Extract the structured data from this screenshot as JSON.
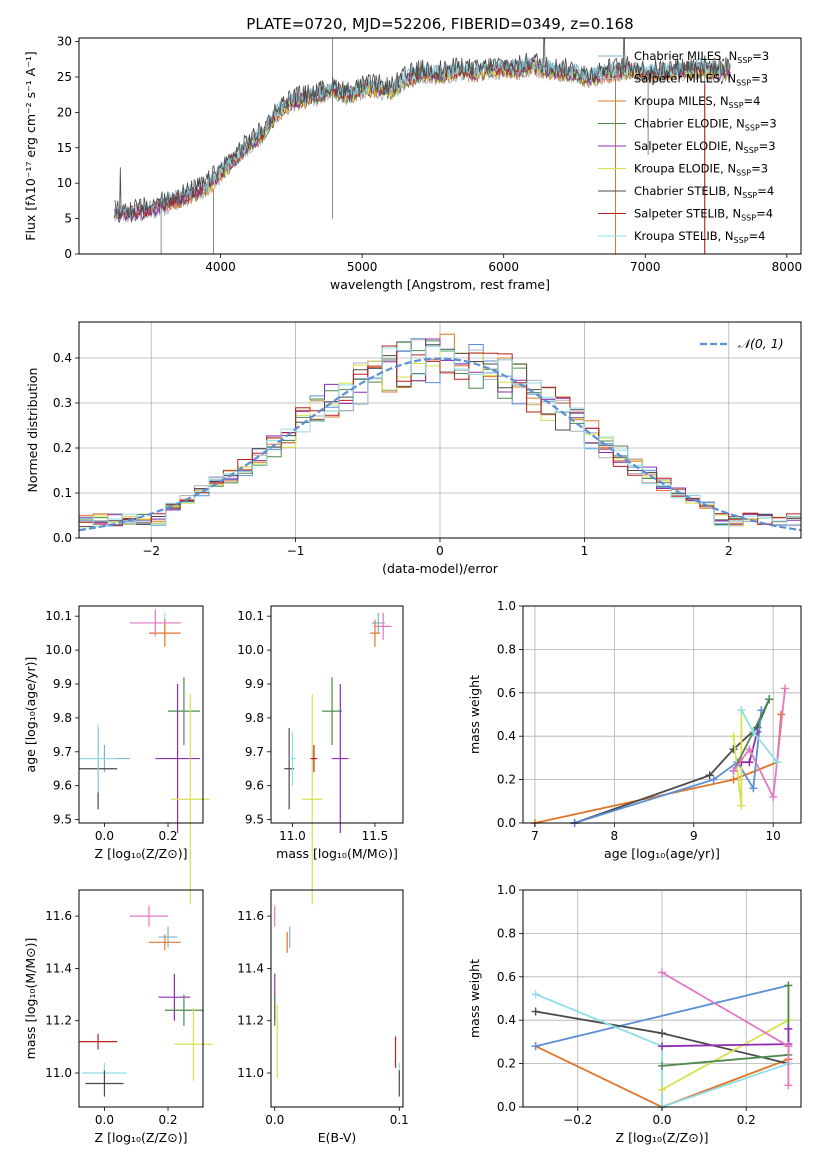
{
  "figure_title": "PLATE=0720, MJD=52206, FIBERID=0349, z=0.168",
  "colors": {
    "series": [
      "#7fb3c8",
      "#aeb3b8",
      "#e0762a",
      "#4f8b4f",
      "#8e2fb0",
      "#d8e04f",
      "#4a4a4a",
      "#b81f1f",
      "#8fdde6"
    ],
    "pink": "#e377c2",
    "blue": "#5b8fd6",
    "grid": "#b0b0b0",
    "gaussian": "#5b8fd6"
  },
  "chart_data": [
    {
      "id": "spectrum",
      "type": "line",
      "title": "PLATE=0720, MJD=52206, FIBERID=0349, z=0.168",
      "xlabel": "wavelength [Angstrom, rest frame]",
      "ylabel": "Flux [fλ10⁻¹⁷ erg cm⁻² s⁻¹ A⁻¹]",
      "xlim": [
        3000,
        8100
      ],
      "ylim": [
        0,
        30.5
      ],
      "xticks": [
        4000,
        5000,
        6000,
        7000,
        8000
      ],
      "yticks": [
        0,
        5,
        10,
        15,
        20,
        25,
        30
      ],
      "grid": false,
      "legend_position": "top-right",
      "legend": [
        {
          "label": "Chabrier MILES, N",
          "sub": "SSP",
          "tail": "=3"
        },
        {
          "label": "Salpeter MILES, N",
          "sub": "SSP",
          "tail": "=3"
        },
        {
          "label": "Kroupa MILES, N",
          "sub": "SSP",
          "tail": "=4"
        },
        {
          "label": "Chabrier ELODIE, N",
          "sub": "SSP",
          "tail": "=3"
        },
        {
          "label": "Salpeter ELODIE, N",
          "sub": "SSP",
          "tail": "=3"
        },
        {
          "label": "Kroupa ELODIE, N",
          "sub": "SSP",
          "tail": "=3"
        },
        {
          "label": "Chabrier STELIB, N",
          "sub": "SSP",
          "tail": "=4"
        },
        {
          "label": "Salpeter STELIB, N",
          "sub": "SSP",
          "tail": "=4"
        },
        {
          "label": "Kroupa STELIB, N",
          "sub": "SSP",
          "tail": "=4"
        }
      ],
      "continuum": [
        [
          3250,
          5.6
        ],
        [
          3400,
          5.8
        ],
        [
          3550,
          6.5
        ],
        [
          3700,
          7.8
        ],
        [
          3800,
          8.5
        ],
        [
          3900,
          9.5
        ],
        [
          4000,
          11.5
        ],
        [
          4100,
          13.5
        ],
        [
          4200,
          15.5
        ],
        [
          4300,
          17
        ],
        [
          4400,
          20
        ],
        [
          4500,
          21.5
        ],
        [
          4600,
          22
        ],
        [
          4700,
          22.5
        ],
        [
          4800,
          23.2
        ],
        [
          4900,
          22.5
        ],
        [
          5000,
          23.2
        ],
        [
          5100,
          23.5
        ],
        [
          5200,
          23
        ],
        [
          5300,
          24.5
        ],
        [
          5400,
          25.5
        ],
        [
          5500,
          25.5
        ],
        [
          5600,
          25.5
        ],
        [
          5700,
          26
        ],
        [
          5800,
          25.5
        ],
        [
          5900,
          26
        ],
        [
          6000,
          26.2
        ],
        [
          6100,
          26
        ],
        [
          6200,
          26.8
        ],
        [
          6300,
          26
        ],
        [
          6400,
          25.8
        ],
        [
          6500,
          25.5
        ],
        [
          6600,
          24.8
        ],
        [
          6700,
          25.5
        ],
        [
          6800,
          25.8
        ],
        [
          6900,
          26
        ],
        [
          7000,
          25.5
        ],
        [
          7100,
          25.5
        ],
        [
          7200,
          25.8
        ],
        [
          7300,
          26
        ],
        [
          7400,
          26.2
        ],
        [
          7500,
          25.8
        ],
        [
          7600,
          26
        ]
      ]
    },
    {
      "id": "residuals",
      "type": "histogram",
      "xlabel": "(data-model)/error",
      "ylabel": "Normed distribution",
      "xlim": [
        -2.5,
        2.5
      ],
      "ylim": [
        0,
        0.48
      ],
      "xticks": [
        -2,
        -1,
        0,
        1,
        2
      ],
      "yticks": [
        0.0,
        0.1,
        0.2,
        0.3,
        0.4
      ],
      "grid": true,
      "legend_position": "top-right",
      "gaussian_label": "𝒩(0, 1)",
      "bin_width": 0.1
    },
    {
      "id": "age-vs-Z",
      "type": "scatter",
      "xlabel": "Z [log₁₀(Z/Z⊙)]",
      "ylabel": "age  [log₁₀(age/yr)]",
      "xlim": [
        -0.08,
        0.31
      ],
      "ylim": [
        9.49,
        10.13
      ],
      "xticks": [
        0.0,
        0.2
      ],
      "yticks": [
        9.5,
        9.6,
        9.7,
        9.8,
        9.9,
        10.0,
        10.1
      ],
      "points": [
        {
          "x": 0.0,
          "y": 9.68,
          "xerr": 0.08,
          "yerr": 0.04,
          "series": 0
        },
        {
          "x": 0.19,
          "y": 10.08,
          "xerr": 0.05,
          "yerr": 0.03,
          "series": 8
        },
        {
          "x": 0.19,
          "y": 10.05,
          "xerr": 0.05,
          "yerr": 0.04,
          "series": 2
        },
        {
          "x": 0.16,
          "y": 10.08,
          "xerr": 0.08,
          "yerr": 0.04,
          "series": "pink"
        },
        {
          "x": 0.25,
          "y": 9.82,
          "xerr": 0.05,
          "yerr": 0.1,
          "series": 3
        },
        {
          "x": 0.23,
          "y": 9.68,
          "xerr": 0.07,
          "yerr": 0.22,
          "series": 4
        },
        {
          "x": 0.27,
          "y": 9.56,
          "xerr": 0.06,
          "yerr": 0.31,
          "series": 5
        },
        {
          "x": -0.02,
          "y": 9.65,
          "xerr": 0.06,
          "yerr": 0.12,
          "series": 6
        },
        {
          "x": -0.02,
          "y": 9.68,
          "xerr": 0.06,
          "yerr": 0.1,
          "series": 8
        }
      ]
    },
    {
      "id": "age-vs-mass",
      "type": "scatter",
      "xlabel": "mass [log₁₀(M/M⊙)]",
      "ylabel": "",
      "xlim": [
        10.87,
        11.67
      ],
      "ylim": [
        9.49,
        10.13
      ],
      "xticks": [
        11.0,
        11.5
      ],
      "yticks": [
        9.5,
        9.6,
        9.7,
        9.8,
        9.9,
        10.0,
        10.1
      ],
      "points": [
        {
          "x": 11.52,
          "y": 10.08,
          "xerr": 0.04,
          "yerr": 0.03,
          "series": 0
        },
        {
          "x": 11.55,
          "y": 10.07,
          "xerr": 0.05,
          "yerr": 0.04,
          "series": "pink"
        },
        {
          "x": 11.5,
          "y": 10.05,
          "xerr": 0.03,
          "yerr": 0.04,
          "series": 2
        },
        {
          "x": 11.24,
          "y": 9.82,
          "xerr": 0.06,
          "yerr": 0.1,
          "series": 3
        },
        {
          "x": 11.29,
          "y": 9.68,
          "xerr": 0.05,
          "yerr": 0.22,
          "series": 4
        },
        {
          "x": 11.12,
          "y": 9.56,
          "xerr": 0.06,
          "yerr": 0.31,
          "series": 5
        },
        {
          "x": 10.98,
          "y": 9.65,
          "xerr": 0.03,
          "yerr": 0.12,
          "series": 6
        },
        {
          "x": 11.13,
          "y": 9.68,
          "xerr": 0.02,
          "yerr": 0.04,
          "series": 7
        },
        {
          "x": 11.0,
          "y": 9.68,
          "xerr": 0.02,
          "yerr": 0.08,
          "series": 8
        }
      ]
    },
    {
      "id": "sfh-age",
      "type": "line",
      "xlabel": "age  [log₁₀(age/yr)]",
      "ylabel": "mass weight",
      "xlim": [
        6.85,
        10.35
      ],
      "ylim": [
        0,
        1
      ],
      "xticks": [
        7,
        8,
        9,
        10
      ],
      "yticks": [
        0.0,
        0.2,
        0.4,
        0.6,
        0.8,
        1.0
      ],
      "grid": true,
      "series": [
        {
          "color": 2,
          "x": [
            7.0,
            9.5,
            10.05,
            10.1
          ],
          "y": [
            0.0,
            0.2,
            0.28,
            0.5
          ]
        },
        {
          "color": 6,
          "x": [
            7.5,
            9.2,
            9.5,
            9.8,
            9.95
          ],
          "y": [
            0.0,
            0.22,
            0.34,
            0.44,
            0.57
          ]
        },
        {
          "color": "blue",
          "x": [
            7.5,
            9.25,
            9.55,
            9.75,
            9.85
          ],
          "y": [
            0.0,
            0.2,
            0.28,
            0.16,
            0.52
          ]
        },
        {
          "color": 5,
          "x": [
            9.5,
            9.6,
            9.6
          ],
          "y": [
            0.4,
            0.08,
            0.52
          ]
        },
        {
          "color": 3,
          "x": [
            9.5,
            9.75,
            9.95
          ],
          "y": [
            0.24,
            0.42,
            0.57
          ]
        },
        {
          "color": 4,
          "x": [
            9.6,
            9.7,
            9.8
          ],
          "y": [
            0.28,
            0.28,
            0.42
          ]
        },
        {
          "color": "pink",
          "x": [
            9.5,
            9.7,
            10.0,
            10.15
          ],
          "y": [
            0.24,
            0.34,
            0.12,
            0.62
          ]
        },
        {
          "color": 8,
          "x": [
            9.6,
            9.75,
            10.05
          ],
          "y": [
            0.52,
            0.42,
            0.28
          ]
        }
      ]
    },
    {
      "id": "mass-vs-Z",
      "type": "scatter",
      "xlabel": "Z [log₁₀(Z/Z⊙)]",
      "ylabel": "mass [log₁₀(M/M⊙)]",
      "xlim": [
        -0.08,
        0.31
      ],
      "ylim": [
        10.87,
        11.7
      ],
      "xticks": [
        0.0,
        0.2
      ],
      "yticks": [
        11.0,
        11.2,
        11.4,
        11.6
      ],
      "points": [
        {
          "x": 0.14,
          "y": 11.6,
          "xerr": 0.06,
          "yerr": 0.04,
          "series": "pink"
        },
        {
          "x": 0.2,
          "y": 11.52,
          "xerr": 0.03,
          "yerr": 0.04,
          "series": 0
        },
        {
          "x": 0.19,
          "y": 11.5,
          "xerr": 0.05,
          "yerr": 0.03,
          "series": 2
        },
        {
          "x": 0.22,
          "y": 11.29,
          "xerr": 0.05,
          "yerr": 0.09,
          "series": 4
        },
        {
          "x": 0.25,
          "y": 11.24,
          "xerr": 0.06,
          "yerr": 0.06,
          "series": 3
        },
        {
          "x": 0.28,
          "y": 11.11,
          "xerr": 0.06,
          "yerr": 0.14,
          "series": 5
        },
        {
          "x": -0.02,
          "y": 11.12,
          "xerr": 0.06,
          "yerr": 0.03,
          "series": 7
        },
        {
          "x": 0.0,
          "y": 11.0,
          "xerr": 0.07,
          "yerr": 0.04,
          "series": 8
        },
        {
          "x": 0.0,
          "y": 10.96,
          "xerr": 0.06,
          "yerr": 0.05,
          "series": 6
        }
      ]
    },
    {
      "id": "mass-vs-ebv",
      "type": "scatter",
      "xlabel": "E(B-V)",
      "ylabel": "",
      "xlim": [
        -0.003,
        0.103
      ],
      "ylim": [
        10.87,
        11.7
      ],
      "xticks": [
        0.0,
        0.1
      ],
      "yticks": [
        11.0,
        11.2,
        11.4,
        11.6
      ],
      "points": [
        {
          "x": 0.0,
          "y": 11.6,
          "yerr": 0.04,
          "series": "pink"
        },
        {
          "x": 0.012,
          "y": 11.52,
          "yerr": 0.04,
          "series": 0
        },
        {
          "x": 0.01,
          "y": 11.5,
          "yerr": 0.04,
          "series": 2
        },
        {
          "x": 0.0,
          "y": 11.29,
          "yerr": 0.09,
          "series": 4
        },
        {
          "x": 0.0,
          "y": 11.24,
          "yerr": 0.06,
          "series": 3
        },
        {
          "x": 0.002,
          "y": 11.12,
          "yerr": 0.14,
          "series": 5
        },
        {
          "x": 0.097,
          "y": 11.08,
          "yerr": 0.06,
          "series": 7
        },
        {
          "x": 0.1,
          "y": 11.0,
          "yerr": 0.04,
          "series": 8
        },
        {
          "x": 0.1,
          "y": 10.96,
          "yerr": 0.05,
          "series": 6
        }
      ]
    },
    {
      "id": "sfh-Z",
      "type": "line",
      "xlabel": "Z [log₁₀(Z/Z⊙)]",
      "ylabel": "mass weight",
      "xlim": [
        -0.33,
        0.33
      ],
      "ylim": [
        0,
        1
      ],
      "xticks": [
        -0.2,
        0.0,
        0.2
      ],
      "yticks": [
        0.0,
        0.2,
        0.4,
        0.6,
        0.8,
        1.0
      ],
      "grid": true,
      "series": [
        {
          "color": 2,
          "x": [
            -0.3,
            0.0,
            0.3
          ],
          "y": [
            0.28,
            0.0,
            0.22
          ]
        },
        {
          "color": "blue",
          "x": [
            -0.3,
            0.3
          ],
          "y": [
            0.28,
            0.56
          ]
        },
        {
          "color": 6,
          "x": [
            -0.3,
            0.0,
            0.3
          ],
          "y": [
            0.44,
            0.34,
            0.2
          ]
        },
        {
          "color": 8,
          "x": [
            -0.3,
            0.0,
            0.0,
            0.3
          ],
          "y": [
            0.52,
            0.28,
            0.0,
            0.2
          ]
        },
        {
          "color": 5,
          "x": [
            0.0,
            0.3,
            0.3
          ],
          "y": [
            0.08,
            0.4,
            0.56
          ]
        },
        {
          "color": 3,
          "x": [
            0.0,
            0.3,
            0.3
          ],
          "y": [
            0.19,
            0.24,
            0.56
          ]
        },
        {
          "color": 4,
          "x": [
            0.0,
            0.3,
            0.3
          ],
          "y": [
            0.28,
            0.29,
            0.36
          ]
        },
        {
          "color": "pink",
          "x": [
            0.0,
            0.3,
            0.3
          ],
          "y": [
            0.62,
            0.28,
            0.1
          ]
        }
      ]
    }
  ]
}
